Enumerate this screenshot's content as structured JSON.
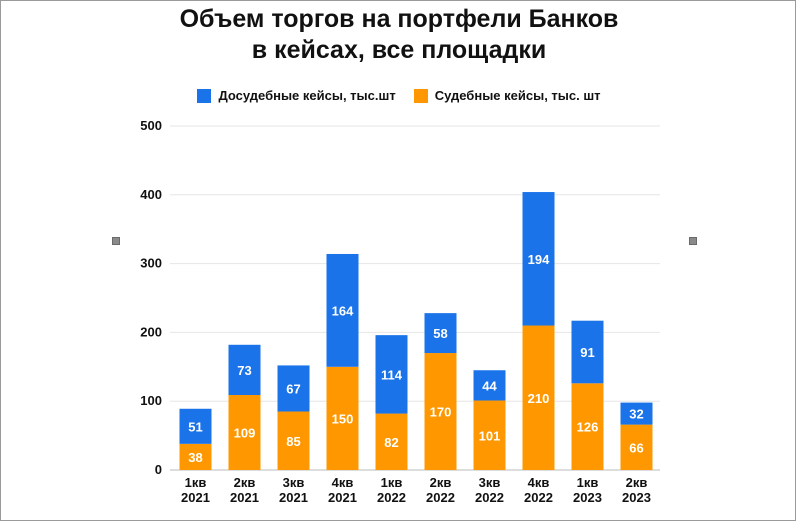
{
  "title_line1": "Объем торгов на портфели Банков",
  "title_line2": "в кейсах, все площадки",
  "colors": {
    "pretrial": "#1a73e8",
    "judicial": "#ff9800",
    "grid": "#e6e6e6"
  },
  "chart_data": {
    "type": "bar",
    "stacked": true,
    "title": "Объем торгов на портфели Банков в кейсах, все площадки",
    "categories": [
      [
        "1кв",
        "2021"
      ],
      [
        "2кв",
        "2021"
      ],
      [
        "3кв",
        "2021"
      ],
      [
        "4кв",
        "2021"
      ],
      [
        "1кв",
        "2022"
      ],
      [
        "2кв",
        "2022"
      ],
      [
        "3кв",
        "2022"
      ],
      [
        "4кв",
        "2022"
      ],
      [
        "1кв",
        "2023"
      ],
      [
        "2кв",
        "2023"
      ]
    ],
    "series": [
      {
        "name": "Судебные кейсы, тыс. шт",
        "values": [
          38,
          109,
          85,
          150,
          82,
          170,
          101,
          210,
          126,
          66
        ]
      },
      {
        "name": "Досудебные кейсы, тыс.шт",
        "values": [
          51,
          73,
          67,
          164,
          114,
          58,
          44,
          194,
          91,
          32
        ]
      }
    ],
    "ylim": [
      0,
      500
    ],
    "yticks": [
      0,
      100,
      200,
      300,
      400,
      500
    ],
    "grid": true,
    "legend_position": "top"
  }
}
